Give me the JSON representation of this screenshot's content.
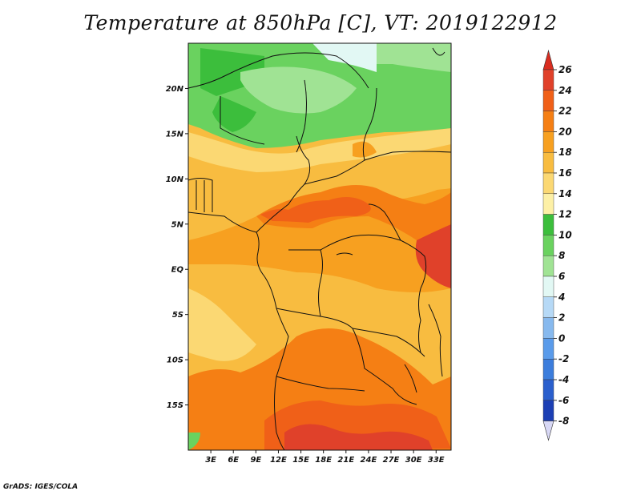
{
  "title": "Temperature at 850hPa [C], VT: 2019122912",
  "credit": "GrADS: IGES/COLA",
  "map": {
    "lon_range": [
      0,
      35
    ],
    "lat_range": [
      -20,
      25
    ],
    "x_tick_labels": [
      "3E",
      "6E",
      "9E",
      "12E",
      "15E",
      "18E",
      "21E",
      "24E",
      "27E",
      "30E",
      "33E"
    ],
    "y_tick_labels": [
      "20N",
      "15N",
      "10N",
      "5N",
      "EQ",
      "5S",
      "10S",
      "15S"
    ]
  },
  "colorbar": {
    "levels": [
      "26",
      "24",
      "22",
      "20",
      "18",
      "16",
      "14",
      "12",
      "10",
      "8",
      "6",
      "4",
      "2",
      "0",
      "-2",
      "-4",
      "-6",
      "-8"
    ],
    "colors": [
      "#e0412a",
      "#f06018",
      "#f57f14",
      "#f7a020",
      "#f8bc40",
      "#fbd873",
      "#fdf0a6",
      "#3cbe3c",
      "#6ad25f",
      "#a0e394",
      "#e2f8f4",
      "#b6d9f6",
      "#87b9ee",
      "#5a9bea",
      "#3c7ddc",
      "#2a5fcd",
      "#1c3fb4",
      "#101a86",
      "#0a0a50"
    ],
    "top_color": "#d92d20",
    "bottom_color": "#d8d8f5"
  }
}
